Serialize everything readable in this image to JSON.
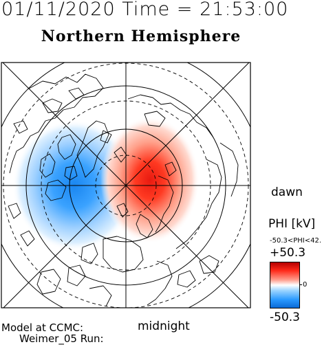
{
  "header": {
    "datetime": "01/11/2020 Time = 21:53:00"
  },
  "map": {
    "title": "Northern Hemisphere",
    "dawn_label": "dawn",
    "midnight_label": "midnight"
  },
  "footer": {
    "model_line1": "Model at CCMC:",
    "model_line2": "Weimer_05 Run:"
  },
  "colorbar": {
    "quantity_label": "PHI [kV]",
    "range_text": "-50.3<PHI<42.",
    "max_label": "+50.3",
    "min_label": "-50.3",
    "zero_label": "0",
    "colors": {
      "positive": "#e81a10",
      "neutral": "#ffffff",
      "negative": "#2a9aff"
    }
  }
}
